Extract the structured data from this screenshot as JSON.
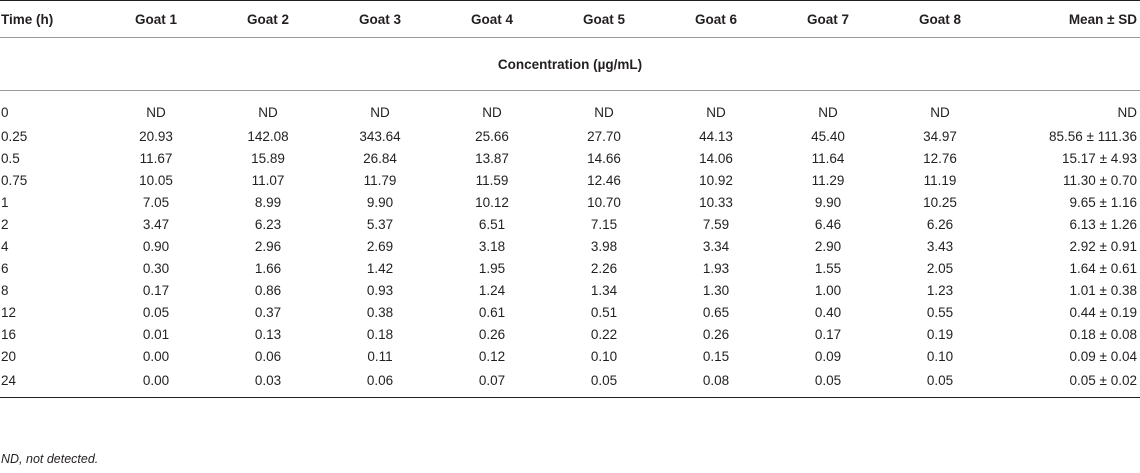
{
  "table": {
    "columns": [
      "Time (h)",
      "Goat 1",
      "Goat 2",
      "Goat 3",
      "Goat 4",
      "Goat 5",
      "Goat 6",
      "Goat 7",
      "Goat 8",
      "Mean ± SD"
    ],
    "subheader": "Concentration (µg/mL)",
    "rows": [
      [
        "0",
        "ND",
        "ND",
        "ND",
        "ND",
        "ND",
        "ND",
        "ND",
        "ND",
        "ND"
      ],
      [
        "0.25",
        "20.93",
        "142.08",
        "343.64",
        "25.66",
        "27.70",
        "44.13",
        "45.40",
        "34.97",
        "85.56 ± 111.36"
      ],
      [
        "0.5",
        "11.67",
        "15.89",
        "26.84",
        "13.87",
        "14.66",
        "14.06",
        "11.64",
        "12.76",
        "15.17 ± 4.93"
      ],
      [
        "0.75",
        "10.05",
        "11.07",
        "11.79",
        "11.59",
        "12.46",
        "10.92",
        "11.29",
        "11.19",
        "11.30 ± 0.70"
      ],
      [
        "1",
        "7.05",
        "8.99",
        "9.90",
        "10.12",
        "10.70",
        "10.33",
        "9.90",
        "10.25",
        "9.65 ± 1.16"
      ],
      [
        "2",
        "3.47",
        "6.23",
        "5.37",
        "6.51",
        "7.15",
        "7.59",
        "6.46",
        "6.26",
        "6.13 ± 1.26"
      ],
      [
        "4",
        "0.90",
        "2.96",
        "2.69",
        "3.18",
        "3.98",
        "3.34",
        "2.90",
        "3.43",
        "2.92 ± 0.91"
      ],
      [
        "6",
        "0.30",
        "1.66",
        "1.42",
        "1.95",
        "2.26",
        "1.93",
        "1.55",
        "2.05",
        "1.64 ± 0.61"
      ],
      [
        "8",
        "0.17",
        "0.86",
        "0.93",
        "1.24",
        "1.34",
        "1.30",
        "1.00",
        "1.23",
        "1.01 ± 0.38"
      ],
      [
        "12",
        "0.05",
        "0.37",
        "0.38",
        "0.61",
        "0.51",
        "0.65",
        "0.40",
        "0.55",
        "0.44 ± 0.19"
      ],
      [
        "16",
        "0.01",
        "0.13",
        "0.18",
        "0.26",
        "0.22",
        "0.26",
        "0.17",
        "0.19",
        "0.18 ± 0.08"
      ],
      [
        "20",
        "0.00",
        "0.06",
        "0.11",
        "0.12",
        "0.10",
        "0.15",
        "0.09",
        "0.10",
        "0.09 ± 0.04"
      ],
      [
        "24",
        "0.00",
        "0.03",
        "0.06",
        "0.07",
        "0.05",
        "0.08",
        "0.05",
        "0.05",
        "0.05 ± 0.02"
      ]
    ]
  },
  "footnote": "ND, not detected."
}
